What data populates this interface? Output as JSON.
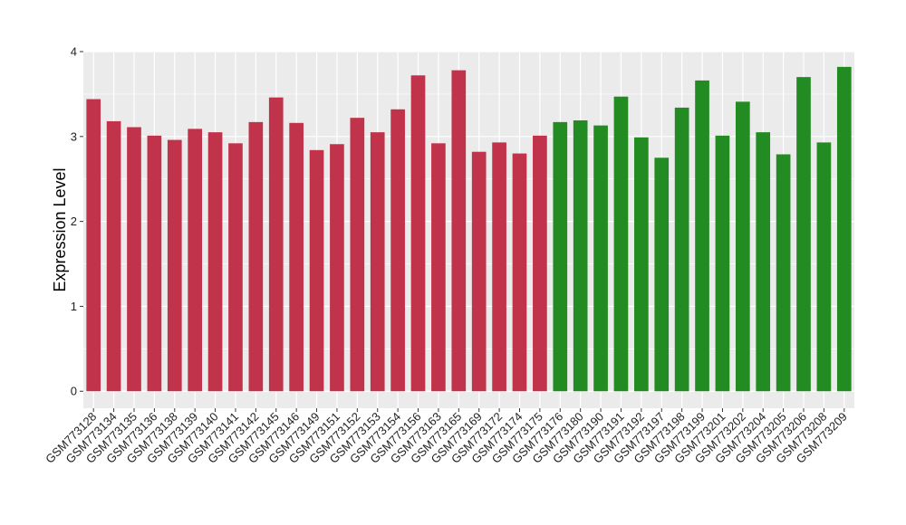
{
  "chart_data": {
    "type": "bar",
    "title": "",
    "xlabel": "",
    "ylabel": "Expression Level",
    "ylim": [
      -0.2,
      4
    ],
    "yticks": [
      0,
      1,
      2,
      3,
      4
    ],
    "grid": true,
    "legend": "none",
    "colors": {
      "panel_background": "#ebebeb",
      "grid": "#ffffff",
      "group1": "#c1334a",
      "group2": "#228b22"
    },
    "categories": [
      "GSM773128",
      "GSM773134",
      "GSM773135",
      "GSM773136",
      "GSM773138",
      "GSM773139",
      "GSM773140",
      "GSM773141",
      "GSM773142",
      "GSM773145",
      "GSM773146",
      "GSM773149",
      "GSM773151",
      "GSM773152",
      "GSM773153",
      "GSM773154",
      "GSM773156",
      "GSM773163",
      "GSM773165",
      "GSM773169",
      "GSM773172",
      "GSM773174",
      "GSM773175",
      "GSM773176",
      "GSM773180",
      "GSM773190",
      "GSM773191",
      "GSM773192",
      "GSM773197",
      "GSM773198",
      "GSM773199",
      "GSM773201",
      "GSM773202",
      "GSM773204",
      "GSM773205",
      "GSM773206",
      "GSM773208",
      "GSM773209"
    ],
    "values": [
      3.44,
      3.18,
      3.11,
      3.01,
      2.96,
      3.09,
      3.05,
      2.92,
      3.17,
      3.46,
      3.16,
      2.84,
      2.91,
      3.22,
      3.05,
      3.32,
      3.72,
      2.92,
      3.78,
      2.82,
      2.93,
      2.8,
      3.01,
      3.17,
      3.19,
      3.13,
      3.47,
      2.99,
      2.75,
      3.34,
      3.66,
      3.01,
      3.41,
      3.05,
      2.79,
      3.7,
      2.93,
      3.82
    ],
    "groups": [
      1,
      1,
      1,
      1,
      1,
      1,
      1,
      1,
      1,
      1,
      1,
      1,
      1,
      1,
      1,
      1,
      1,
      1,
      1,
      1,
      1,
      1,
      1,
      2,
      2,
      2,
      2,
      2,
      2,
      2,
      2,
      2,
      2,
      2,
      2,
      2,
      2,
      2
    ]
  }
}
